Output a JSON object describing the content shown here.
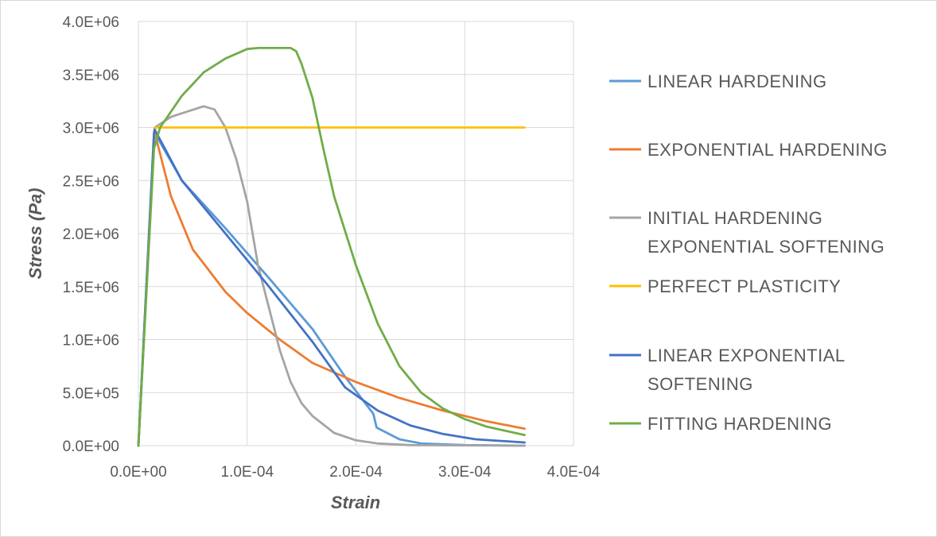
{
  "chart_data": {
    "type": "line",
    "xlabel": "Strain",
    "ylabel": "Stress  (Pa)",
    "xlim": [
      0,
      0.0004
    ],
    "ylim": [
      0,
      4000000
    ],
    "x_ticks": [
      0,
      0.0001,
      0.0002,
      0.0003,
      0.0004
    ],
    "x_tick_labels": [
      "0.0E+00",
      "1.0E-04",
      "2.0E-04",
      "3.0E-04",
      "4.0E-04"
    ],
    "y_ticks": [
      0,
      500000,
      1000000,
      1500000,
      2000000,
      2500000,
      3000000,
      3500000,
      4000000
    ],
    "y_tick_labels": [
      "0.0E+00",
      "5.0E+05",
      "1.0E+06",
      "1.5E+06",
      "2.0E+06",
      "2.5E+06",
      "3.0E+06",
      "3.5E+06",
      "4.0E+06"
    ],
    "grid": "vertical-and-horizontal",
    "legend_position": "right",
    "series": [
      {
        "name": "LINEAR HARDENING",
        "legend_lines": [
          "LINEAR HARDENING"
        ],
        "color": "#5B9BD5",
        "x": [
          0,
          1.43e-05,
          1.5e-05,
          4e-05,
          8e-05,
          0.00012,
          0.00016,
          0.00019,
          0.000216,
          0.000219,
          0.00024,
          0.00026,
          0.0003,
          0.000355
        ],
        "y": [
          0,
          2900000,
          2950000,
          2500000,
          2050000,
          1580000,
          1100000,
          650000,
          300000,
          170000,
          60000,
          20000,
          5000,
          0
        ]
      },
      {
        "name": "EXPONENTIAL HARDENING",
        "legend_lines": [
          "EXPONENTIAL HARDENING"
        ],
        "color": "#ED7D31",
        "x": [
          0,
          1.43e-05,
          1.5e-05,
          3e-05,
          5e-05,
          8e-05,
          0.0001,
          0.00013,
          0.00016,
          0.0002,
          0.00024,
          0.00028,
          0.00032,
          0.000355
        ],
        "y": [
          0,
          2900000,
          2950000,
          2350000,
          1850000,
          1450000,
          1250000,
          1000000,
          780000,
          600000,
          450000,
          330000,
          230000,
          160000
        ]
      },
      {
        "name": "INITIAL HARDENING EXPONENTIAL SOFTENING",
        "legend_lines": [
          "INITIAL HARDENING",
          "EXPONENTIAL SOFTENING"
        ],
        "color": "#A5A5A5",
        "x": [
          0,
          1.5e-05,
          3e-05,
          6e-05,
          7e-05,
          8e-05,
          9e-05,
          0.0001,
          0.00011,
          0.00012,
          0.00013,
          0.00014,
          0.00015,
          0.00016,
          0.00018,
          0.0002,
          0.00022,
          0.00025,
          0.000355
        ],
        "y": [
          0,
          3000000,
          3100000,
          3200000,
          3170000,
          3000000,
          2700000,
          2300000,
          1700000,
          1300000,
          900000,
          600000,
          400000,
          280000,
          120000,
          50000,
          20000,
          5000,
          0
        ]
      },
      {
        "name": "PERFECT PLASTICITY",
        "legend_lines": [
          "PERFECT PLASTICITY"
        ],
        "color": "#FFC000",
        "x": [
          1.5e-05,
          0.000355
        ],
        "y": [
          3000000,
          3000000
        ]
      },
      {
        "name": "LINEAR EXPONENTIAL SOFTENING",
        "legend_lines": [
          "LINEAR EXPONENTIAL",
          "SOFTENING"
        ],
        "color": "#4472C4",
        "x": [
          0,
          1.43e-05,
          1.5e-05,
          4e-05,
          8e-05,
          0.00012,
          0.00016,
          0.00019,
          0.00022,
          0.00025,
          0.00028,
          0.00031,
          0.000355
        ],
        "y": [
          0,
          2950000,
          2980000,
          2500000,
          2000000,
          1500000,
          980000,
          550000,
          330000,
          190000,
          110000,
          60000,
          30000
        ]
      },
      {
        "name": "FITTING HARDENING",
        "legend_lines": [
          "FITTING HARDENING"
        ],
        "color": "#70AD47",
        "x": [
          0,
          1.43e-05,
          2e-05,
          4e-05,
          6e-05,
          8e-05,
          0.0001,
          0.00011,
          0.00014,
          0.000145,
          0.00015,
          0.00016,
          0.00017,
          0.00018,
          0.0002,
          0.00022,
          0.00024,
          0.00026,
          0.00028,
          0.0003,
          0.00032,
          0.000355
        ],
        "y": [
          0,
          2800000,
          3000000,
          3300000,
          3520000,
          3650000,
          3740000,
          3750000,
          3750000,
          3720000,
          3600000,
          3280000,
          2800000,
          2350000,
          1700000,
          1150000,
          750000,
          500000,
          350000,
          250000,
          180000,
          100000
        ]
      }
    ]
  }
}
